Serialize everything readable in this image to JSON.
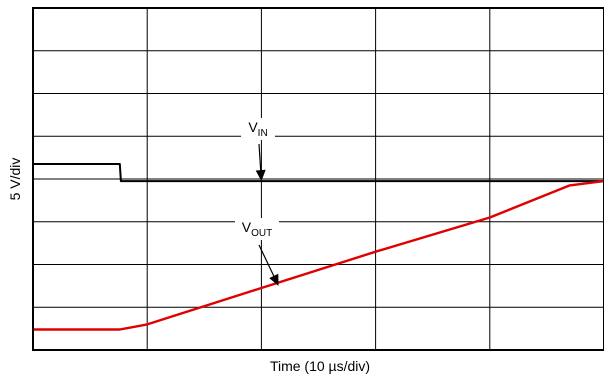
{
  "chart_data": {
    "type": "line",
    "xlabel": "Time (10 µs/div)",
    "ylabel": "5 V/div",
    "x_divisions": 5,
    "y_divisions": 8,
    "xlim": [
      0,
      50
    ],
    "ylim": [
      0,
      8
    ],
    "x_unit": "µs",
    "y_unit": "div",
    "grid": true,
    "series": [
      {
        "name": "VIN",
        "color": "#000000",
        "x": [
          0,
          7.6,
          7.7,
          50
        ],
        "y": [
          4.35,
          4.35,
          3.95,
          3.95
        ]
      },
      {
        "name": "VOUT",
        "color": "#e00000",
        "x": [
          0,
          7.6,
          10,
          20,
          30,
          40,
          47,
          50
        ],
        "y": [
          0.48,
          0.48,
          0.6,
          1.45,
          2.3,
          3.1,
          3.85,
          3.95
        ]
      }
    ],
    "annotations": [
      {
        "label_main": "V",
        "label_sub": "IN",
        "series": "VIN",
        "arrow_to_x": 20,
        "arrow_to_y": 3.95
      },
      {
        "label_main": "V",
        "label_sub": "OUT",
        "series": "VOUT",
        "arrow_to_x": 21.5,
        "arrow_to_y": 1.5
      }
    ]
  }
}
